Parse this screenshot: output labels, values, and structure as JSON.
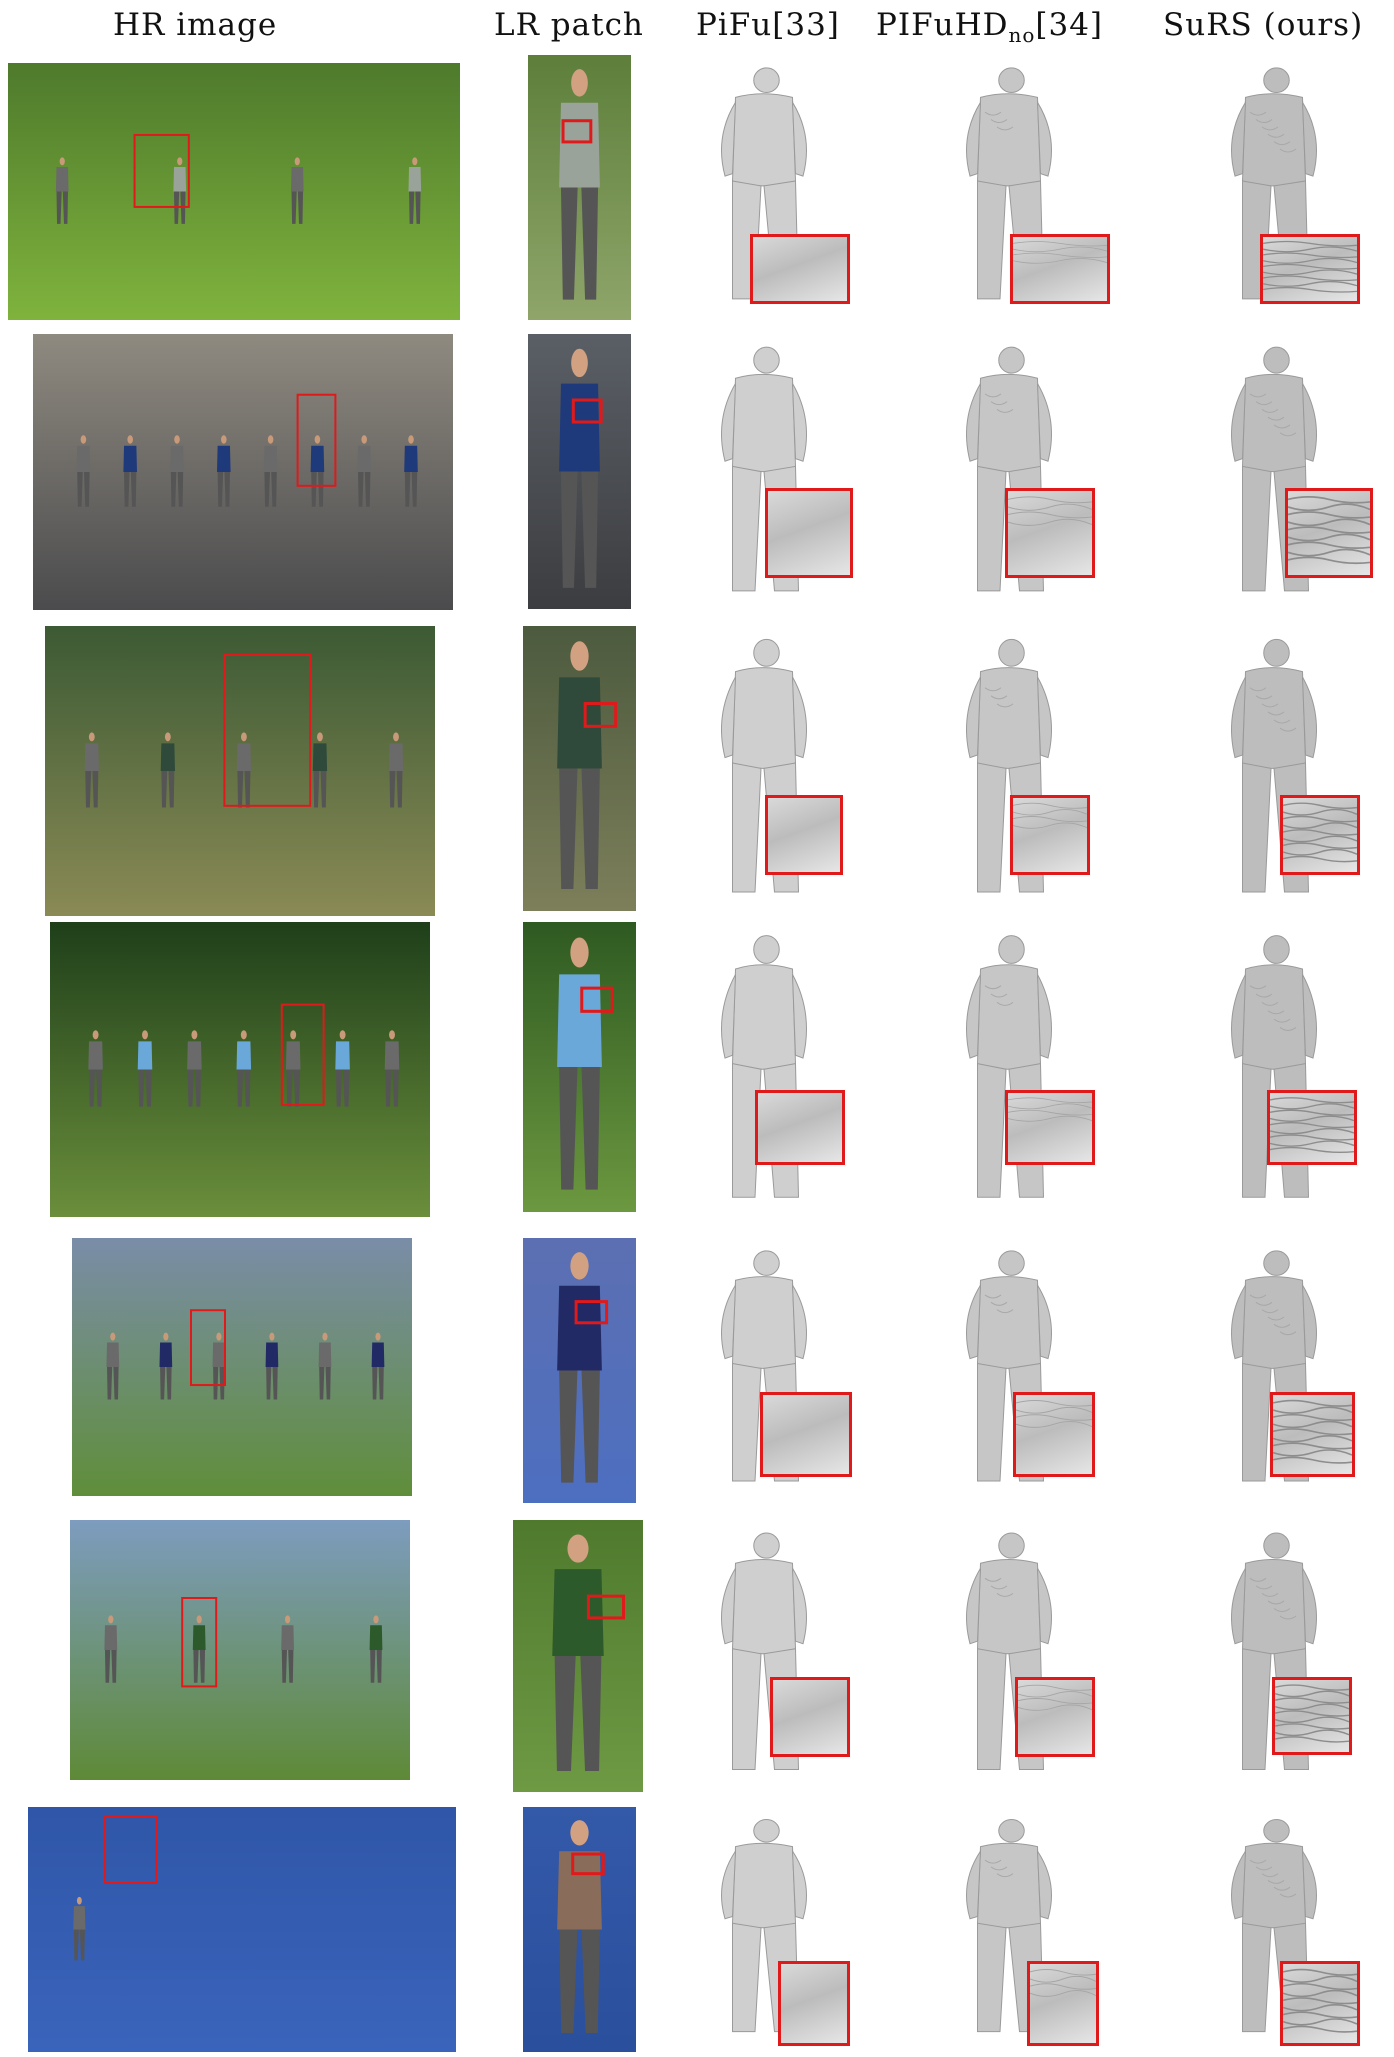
{
  "headers": {
    "hr_image": "HR image",
    "lr_patch": "LR patch",
    "pifu": "PiFu[33]",
    "pifuhd_main": "PIFuHD",
    "pifuhd_sub": "no",
    "pifuhd_ref": "[34]",
    "surs": "SuRS (ours)"
  },
  "colors": {
    "highlight_box": "#e0191b",
    "mesh_gray": "#c8c8c8"
  },
  "rows": [
    {
      "scene": "park-lawn",
      "hr_bg": [
        "#4e7a2c",
        "#7fb33d"
      ],
      "lr_bg": [
        "#5d7f3b",
        "#8fa56a"
      ],
      "person": "#9aa39a"
    },
    {
      "scene": "city-street-runners",
      "hr_bg": [
        "#8f8a80",
        "#4b4b4d"
      ],
      "lr_bg": [
        "#5a5f66",
        "#3c3d40"
      ],
      "person": "#1f3a7a"
    },
    {
      "scene": "park-picnic",
      "hr_bg": [
        "#3c5a34",
        "#8a8a55"
      ],
      "lr_bg": [
        "#4c5a3e",
        "#7d7f5a"
      ],
      "person": "#2f4a3a"
    },
    {
      "scene": "forest-lawn-group",
      "hr_bg": [
        "#1f3f1a",
        "#6a8e3b"
      ],
      "lr_bg": [
        "#2e5a22",
        "#6c9840"
      ],
      "person": "#6aa8d9"
    },
    {
      "scene": "backyard-garden",
      "hr_bg": [
        "#7a8da8",
        "#5f8e3a"
      ],
      "lr_bg": [
        "#5c6fb2",
        "#4d6fc0"
      ],
      "person": "#222a66"
    },
    {
      "scene": "sports-field",
      "hr_bg": [
        "#7d9cbf",
        "#5e8a37"
      ],
      "lr_bg": [
        "#4f7a2e",
        "#6e9a44"
      ],
      "person": "#2d5a2a"
    },
    {
      "scene": "blue-studio",
      "hr_bg": [
        "#2f56a8",
        "#3a64bb"
      ],
      "lr_bg": [
        "#3359a9",
        "#2a4f9c"
      ],
      "person": "#8a6c5a"
    }
  ]
}
